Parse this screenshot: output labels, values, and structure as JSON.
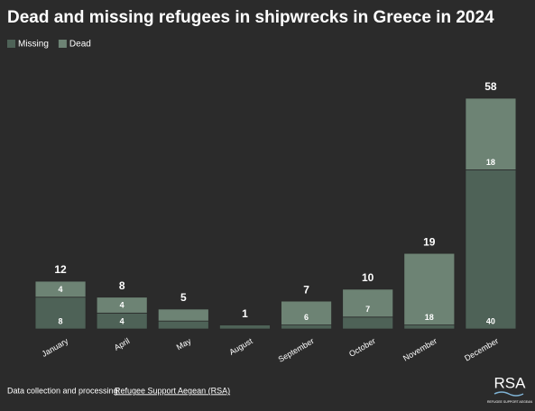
{
  "chart_data": {
    "type": "stacked-bar",
    "title": "Dead and missing refugees in shipwrecks in Greece in 2024",
    "categories": [
      "January",
      "April",
      "May",
      "August",
      "September",
      "October",
      "November",
      "December"
    ],
    "series": [
      {
        "name": "Missing",
        "color": "#4e6257",
        "values": [
          8,
          4,
          2,
          1,
          1,
          3,
          1,
          40
        ]
      },
      {
        "name": "Dead",
        "color": "#6d8374",
        "values": [
          4,
          4,
          3,
          0,
          6,
          7,
          18,
          18
        ]
      }
    ],
    "totals": [
      12,
      8,
      5,
      1,
      7,
      10,
      19,
      58
    ],
    "legend": "top-left",
    "footer": {
      "text": "Data collection and processing:",
      "link": "Refugee Support Aegean (RSA)"
    },
    "logo": {
      "title": "RSA",
      "subtitle": "REFUGEE SUPPORT AEGEAN"
    }
  }
}
